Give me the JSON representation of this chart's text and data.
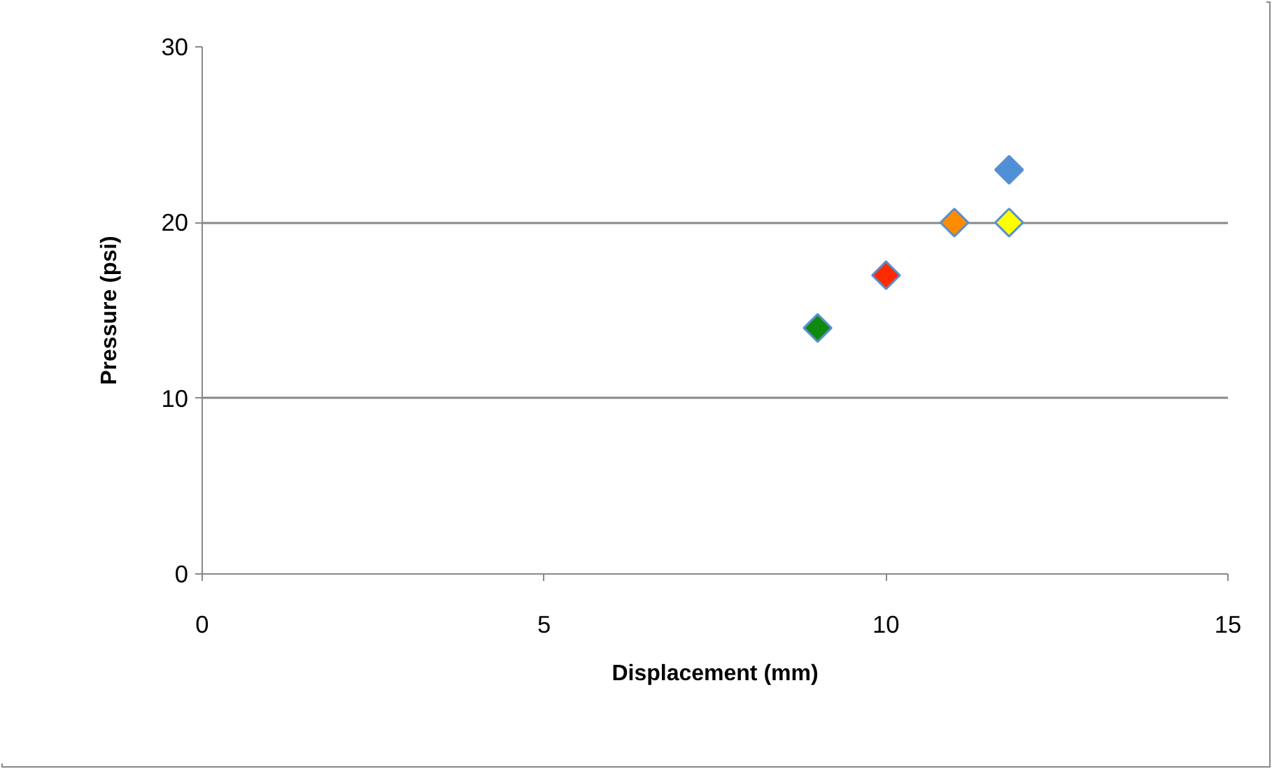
{
  "chart_data": {
    "type": "scatter",
    "xlabel": "Displacement (mm)",
    "ylabel": "Pressure (psi)",
    "x": [
      9,
      10,
      11,
      11.8,
      11.8
    ],
    "values": [
      14,
      17,
      20,
      23,
      20
    ],
    "colors": [
      "#0f8a0f",
      "#ff2a00",
      "#ff8c00",
      "#4f8fd6",
      "#ffff00"
    ],
    "xlim": [
      0,
      15
    ],
    "xticks": [
      0,
      5,
      10,
      15
    ],
    "ylim": [
      0,
      30
    ],
    "yticks": [
      0,
      10,
      20,
      30
    ],
    "grid": "y",
    "marker": "diamond"
  }
}
